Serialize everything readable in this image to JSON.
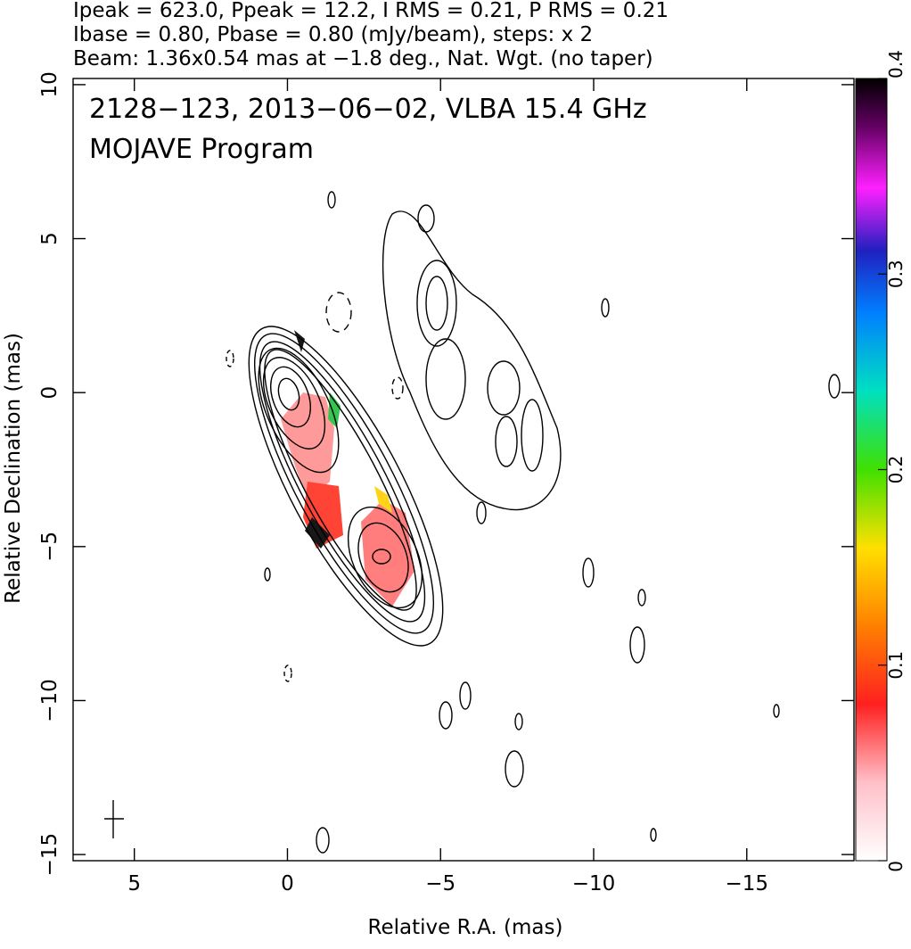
{
  "chart_data": {
    "type": "image",
    "header": [
      "Ipeak = 623.0, Ppeak = 12.2, I RMS = 0.21, P RMS = 0.21",
      "Ibase = 0.80, Pbase = 0.80 (mJy/beam), steps: x 2",
      "Beam: 1.36x0.54 mas at −1.8 deg., Nat. Wgt. (no taper)"
    ],
    "annotations": [
      "2128−123, 2013−06−02, VLBA 15.4 GHz",
      "MOJAVE Program"
    ],
    "x_label": "Relative R.A. (mas)",
    "y_label": "Relative Declination (mas)",
    "xlim": [
      7,
      -18.5
    ],
    "ylim": [
      -15.2,
      10.2
    ],
    "xticks": [
      5,
      0,
      {
        "value": -5,
        "label": "−5"
      },
      {
        "value": -10,
        "label": "−10"
      },
      {
        "value": -15,
        "label": "−15"
      }
    ],
    "yticks": [
      10,
      5,
      0,
      {
        "value": -5,
        "label": "−5"
      },
      {
        "value": -10,
        "label": "−10"
      },
      {
        "value": -15,
        "label": "−15"
      }
    ],
    "colorbar": {
      "lim": [
        0,
        0.4
      ],
      "ticks": [
        0,
        0.1,
        0.2,
        0.3,
        0.4
      ]
    }
  }
}
